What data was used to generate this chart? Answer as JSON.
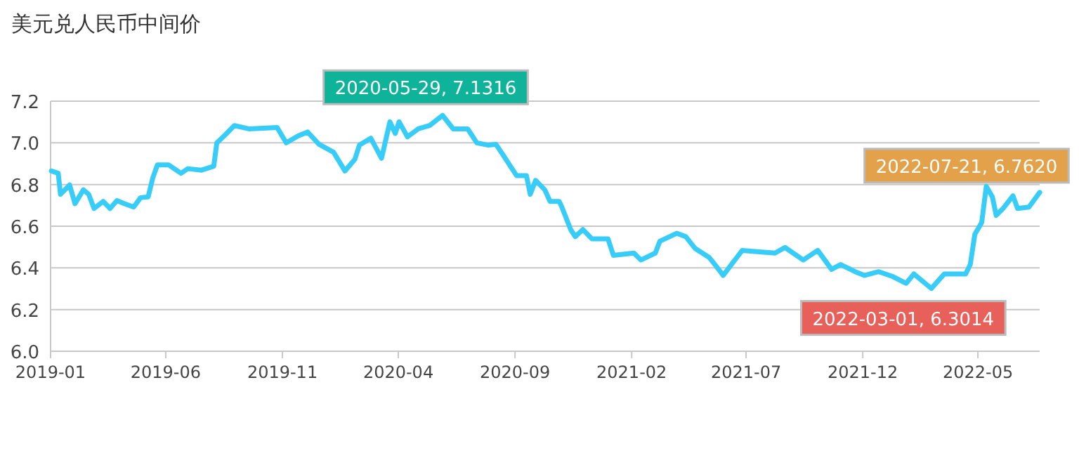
{
  "chart_data": {
    "type": "line",
    "title": "美元兑人民币中间价",
    "x": [
      "2019-01-02",
      "2019-01-11",
      "2019-01-14",
      "2019-01-26",
      "2019-02-02",
      "2019-02-13",
      "2019-02-20",
      "2019-02-27",
      "2019-03-11",
      "2019-03-20",
      "2019-03-29",
      "2019-04-08",
      "2019-04-20",
      "2019-04-29",
      "2019-05-09",
      "2019-05-15",
      "2019-05-21",
      "2019-06-05",
      "2019-06-21",
      "2019-06-30",
      "2019-07-18",
      "2019-08-03",
      "2019-08-07",
      "2019-08-18",
      "2019-08-30",
      "2019-09-18",
      "2019-10-25",
      "2019-11-06",
      "2019-11-22",
      "2019-12-04",
      "2019-12-19",
      "2020-01-07",
      "2020-01-22",
      "2020-02-04",
      "2020-02-10",
      "2020-02-25",
      "2020-03-10",
      "2020-03-21",
      "2020-03-28",
      "2020-04-02",
      "2020-04-13",
      "2020-04-27",
      "2020-05-12",
      "2020-05-29",
      "2020-06-12",
      "2020-07-01",
      "2020-07-13",
      "2020-07-28",
      "2020-08-07",
      "2020-08-16",
      "2020-09-03",
      "2020-09-16",
      "2020-09-21",
      "2020-09-28",
      "2020-10-10",
      "2020-10-17",
      "2020-10-29",
      "2020-11-01",
      "2020-11-13",
      "2020-11-19",
      "2020-11-29",
      "2020-12-11",
      "2021-01-01",
      "2021-01-08",
      "2021-02-04",
      "2021-02-13",
      "2021-03-04",
      "2021-03-10",
      "2021-04-01",
      "2021-04-13",
      "2021-04-25",
      "2021-05-14",
      "2021-05-26",
      "2021-06-01",
      "2021-06-14",
      "2021-06-26",
      "2021-07-21",
      "2021-08-08",
      "2021-08-21",
      "2021-09-14",
      "2021-10-03",
      "2021-10-21",
      "2021-11-02",
      "2021-11-21",
      "2021-12-03",
      "2021-12-22",
      "2022-01-09",
      "2022-01-27",
      "2022-02-06",
      "2022-03-01",
      "2022-03-18",
      "2022-04-15",
      "2022-04-21",
      "2022-04-27",
      "2022-05-06",
      "2022-05-12",
      "2022-05-20",
      "2022-05-25",
      "2022-06-03",
      "2022-06-16",
      "2022-06-22",
      "2022-07-07",
      "2022-07-21"
    ],
    "series": [
      {
        "color": "#38cdf8",
        "values": [
          6.865,
          6.854,
          6.753,
          6.798,
          6.708,
          6.775,
          6.753,
          6.685,
          6.719,
          6.685,
          6.723,
          6.708,
          6.692,
          6.737,
          6.741,
          6.831,
          6.894,
          6.894,
          6.854,
          6.876,
          6.869,
          6.888,
          7.0,
          7.038,
          7.083,
          7.067,
          7.074,
          7.0,
          7.034,
          7.052,
          6.993,
          6.955,
          6.865,
          6.921,
          6.989,
          7.022,
          6.926,
          7.101,
          7.045,
          7.101,
          7.029,
          7.067,
          7.083,
          7.1316,
          7.067,
          7.067,
          7.0,
          6.989,
          6.993,
          6.944,
          6.843,
          6.843,
          6.753,
          6.82,
          6.775,
          6.719,
          6.719,
          6.696,
          6.584,
          6.55,
          6.584,
          6.539,
          6.539,
          6.46,
          6.471,
          6.438,
          6.471,
          6.528,
          6.566,
          6.55,
          6.494,
          6.449,
          6.393,
          6.364,
          6.427,
          6.484,
          6.476,
          6.471,
          6.498,
          6.438,
          6.484,
          6.393,
          6.416,
          6.382,
          6.364,
          6.382,
          6.359,
          6.326,
          6.371,
          6.3014,
          6.371,
          6.371,
          6.416,
          6.561,
          6.618,
          6.791,
          6.741,
          6.652,
          6.685,
          6.746,
          6.685,
          6.692,
          6.762
        ]
      }
    ],
    "xlim": [
      "2019-01-01",
      "2022-07-21"
    ],
    "xticks": [
      "2019-01",
      "2019-06",
      "2019-11",
      "2020-04",
      "2020-09",
      "2021-02",
      "2021-07",
      "2021-12",
      "2022-05"
    ],
    "ylim": [
      6.0,
      7.2
    ],
    "yticks": [
      {
        "value": 6.0,
        "label": "6.0"
      },
      {
        "value": 6.2,
        "label": "6.2"
      },
      {
        "value": 6.4,
        "label": "6.4"
      },
      {
        "value": 6.6,
        "label": "6.6"
      },
      {
        "value": 6.8,
        "label": "6.8"
      },
      {
        "value": 7.0,
        "label": "7.0"
      },
      {
        "value": 7.2,
        "label": "7.2"
      }
    ],
    "grid": "y",
    "annotations": [
      {
        "text": "2020-05-29, 7.1316",
        "x": "2020-05-29",
        "y": 7.1316
      },
      {
        "text": "2022-07-21, 6.7620",
        "x": "2022-07-21",
        "y": 6.762
      },
      {
        "text": "2022-03-01, 6.3014",
        "x": "2022-03-01",
        "y": 6.3014
      }
    ]
  }
}
